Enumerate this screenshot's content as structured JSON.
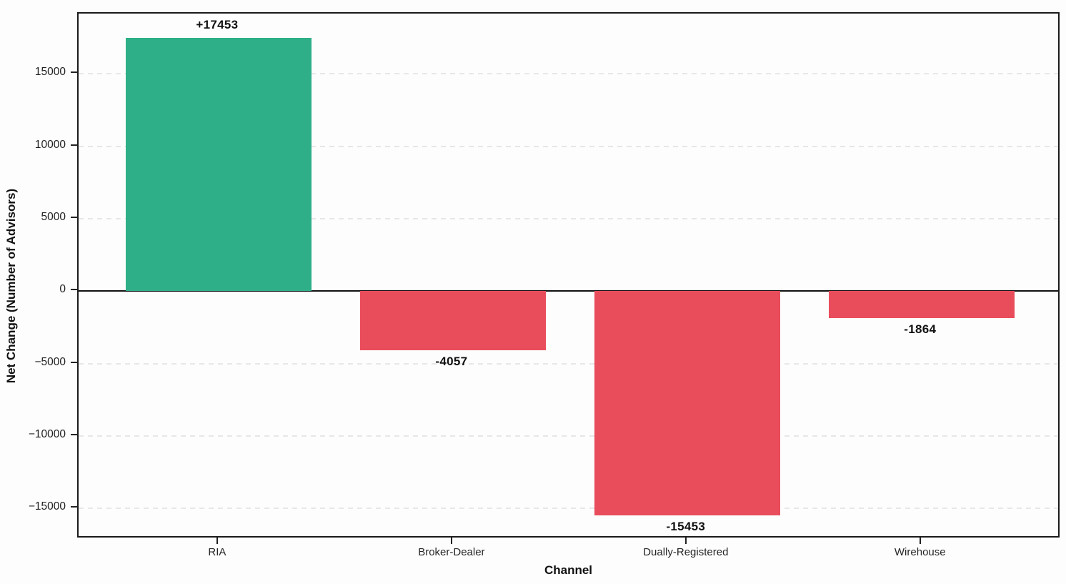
{
  "chart_data": {
    "type": "bar",
    "categories": [
      "RIA",
      "Broker-Dealer",
      "Dually-Registered",
      "Wirehouse"
    ],
    "values": [
      17453,
      -4057,
      -15453,
      -1864
    ],
    "bar_labels": [
      "+17453",
      "-4057",
      "-15453",
      "-1864"
    ],
    "bar_colors": [
      "#2eaf88",
      "#e94d5c",
      "#e94d5c",
      "#e94d5c"
    ],
    "title": "",
    "xlabel": "Channel",
    "ylabel": "Net Change (Number of Advisors)",
    "yticks": [
      -15000,
      -10000,
      -5000,
      0,
      5000,
      10000,
      15000
    ],
    "ytick_labels": [
      "−15000",
      "−10000",
      "−5000",
      "0",
      "5000",
      "10000",
      "15000"
    ],
    "ylim": [
      -17100,
      19150
    ],
    "grid": "horizontal-dashed",
    "zero_line": true,
    "legend": "none"
  },
  "colors": {
    "positive_bar": "#2eaf88",
    "negative_bar": "#e94d5c",
    "grid": "#e7e7e7",
    "axis_frame": "#1a1a1a",
    "background": "#fdfdfd",
    "text": "#111111"
  }
}
